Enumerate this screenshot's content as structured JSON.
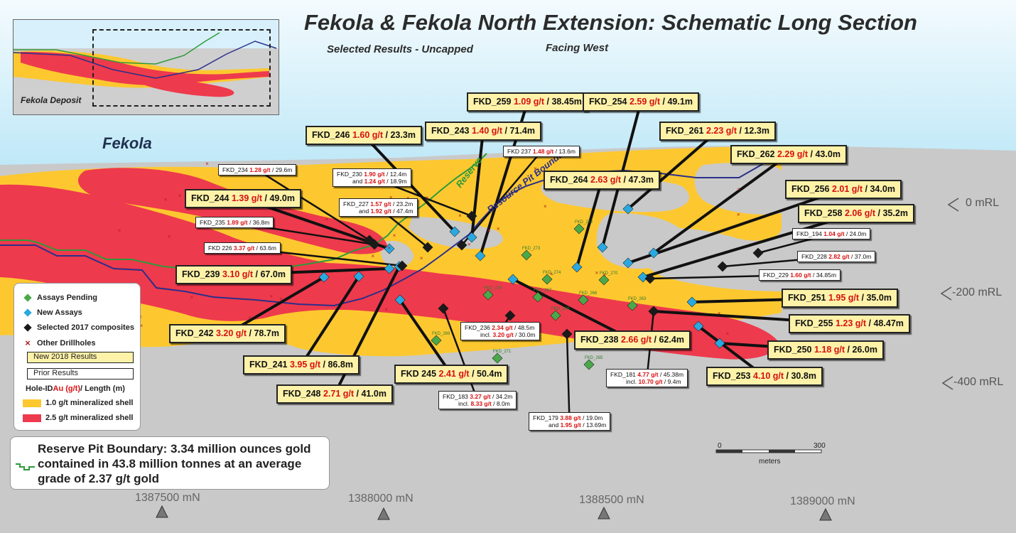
{
  "title": "Fekola & Fekola North Extension: Schematic Long Section",
  "subtitle_left": "Selected Results - Uncapped",
  "subtitle_right": "Facing West",
  "deposit_label": "Fekola",
  "inset_label": "Fekola Deposit",
  "section_labels": {
    "reserve": "Reserve",
    "resource_pit": "Resource Pit Boundary"
  },
  "colors": {
    "sky": "#bfe8f7",
    "shell_1g": "#fdc82f",
    "shell_25g": "#ee3a4d",
    "waste": "#c9c9c9",
    "grade": "#d81010",
    "pending": "#4aa84a",
    "new_assay": "#2aa8e0",
    "composite": "#1a1a1a",
    "reserve_pit": "#2e9a3a",
    "resource_pit": "#2a2f8a"
  },
  "new_labels": [
    {
      "id": "FKD_259",
      "grade": "1.09 g/t",
      "len": "38.45m"
    },
    {
      "id": "FKD_254",
      "grade": "2.59 g/t",
      "len": "49.1m"
    },
    {
      "id": "FKD_243",
      "grade": "1.40 g/t",
      "len": "71.4m"
    },
    {
      "id": "FKD_246",
      "grade": "1.60 g/t",
      "len": "23.3m"
    },
    {
      "id": "FKD_261",
      "grade": "2.23 g/t",
      "len": "12.3m"
    },
    {
      "id": "FKD_262",
      "grade": "2.29 g/t",
      "len": "43.0m"
    },
    {
      "id": "FKD_264",
      "grade": "2.63 g/t",
      "len": "47.3m"
    },
    {
      "id": "FKD_256",
      "grade": "2.01 g/t",
      "len": "34.0m"
    },
    {
      "id": "FKD_258",
      "grade": "2.06 g/t",
      "len": "35.2m"
    },
    {
      "id": "FKD_244",
      "grade": "1.39 g/t",
      "len": "49.0m"
    },
    {
      "id": "FKD_239",
      "grade": "3.10 g/t",
      "len": "67.0m"
    },
    {
      "id": "FKD_251",
      "grade": "1.95 g/t",
      "len": "35.0m"
    },
    {
      "id": "FKD_255",
      "grade": "1.23 g/t",
      "len": "48.47m"
    },
    {
      "id": "FKD_242",
      "grade": "3.20 g/t",
      "len": "78.7m"
    },
    {
      "id": "FKD_238",
      "grade": "2.66 g/t",
      "len": "62.4m"
    },
    {
      "id": "FKD_250",
      "grade": "1.18 g/t",
      "len": "26.0m"
    },
    {
      "id": "FKD_241",
      "grade": "3.95 g/t",
      "len": "86.8m"
    },
    {
      "id": "FKD 245",
      "grade": "2.41 g/t",
      "len": "50.4m"
    },
    {
      "id": "FKD_253",
      "grade": "4.10 g/t",
      "len": "30.8m"
    },
    {
      "id": "FKD_248",
      "grade": "2.71 g/t",
      "len": "41.0m"
    }
  ],
  "prior_labels": [
    {
      "id": "FKD 237",
      "grade": "1.48 g/t",
      "len": "13.6m"
    },
    {
      "id": "FKD_234",
      "grade": "1.28 g/t",
      "len": "29.6m"
    },
    {
      "id": "FKD_230",
      "grade": "1.90 g/t",
      "len": "12.4m",
      "pre2": "and",
      "grade2": "1.24 g/t",
      "len2": "18.9m"
    },
    {
      "id": "FKD_227",
      "grade": "1.57 g/t",
      "len": "23.2m",
      "pre2": "and",
      "grade2": "1.92 g/t",
      "len2": "47.4m"
    },
    {
      "id": "FKD_235",
      "grade": "1.89 g/t",
      "len": "36.8m"
    },
    {
      "id": "FKD 226",
      "grade": "3.37 g/t",
      "len": "63.6m"
    },
    {
      "id": "FKD_194",
      "grade": "1.04 g/t",
      "len": "24.0m"
    },
    {
      "id": "FKD_228",
      "grade": "2.82 g/t",
      "len": "37.0m"
    },
    {
      "id": "FKD_229",
      "grade": "1.60 g/t",
      "len": "34.85m"
    },
    {
      "id": "FKD_236",
      "grade": "2.34 g/t",
      "len": "48.5m",
      "pre2": "incl.",
      "grade2": "3.20 g/t",
      "len2": "30.0m"
    },
    {
      "id": "FKD_181",
      "grade": "4.77 g/t",
      "len": "45.38m",
      "pre2": "incl.",
      "grade2": "10.70 g/t",
      "len2": "9.4m"
    },
    {
      "id": "FKD_183",
      "grade": "3.27 g/t",
      "len": "34.2m",
      "pre2": "incl.",
      "grade2": "8.33 g/t",
      "len2": "8.0m"
    },
    {
      "id": "FKD_179",
      "grade": "3.88 g/t",
      "len": "19.0m",
      "pre2": "and",
      "grade2": "1.95 g/t",
      "len2": "13.69m"
    }
  ],
  "pending_ids": [
    "FKD_272",
    "FKD_273",
    "FKD_274",
    "FKD_270",
    "FKD_266",
    "FKD_263",
    "FKD_276",
    "FKD_267",
    "FKD_268",
    "FKD_269",
    "FKD_271",
    "FKD_265"
  ],
  "legend": {
    "pending": "Assays Pending",
    "new_assays": "New Assays",
    "composites": "Selected 2017 composites",
    "other": "Other Drillholes",
    "new_results": "New 2018 Results",
    "prior_results": "Prior Results",
    "hole_prefix": "Hole-ID ",
    "hole_grade": "Au (g/t)",
    "hole_suffix": " / Length (m)",
    "shell_1": "1.0 g/t mineralized shell",
    "shell_25": "2.5 g/t mineralized shell"
  },
  "reserve_text": "Reserve Pit Boundary: 3.34 million ounces gold contained in 43.8 million tonnes at an average grade of 2.37 g/t gold",
  "rl_labels": [
    "0 mRL",
    "-200 mRL",
    "-400 mRL"
  ],
  "mn_labels": [
    "1387500 mN",
    "1388000 mN",
    "1388500 mN",
    "1389000 mN"
  ],
  "scale": {
    "min": "0",
    "max": "300",
    "unit": "meters"
  }
}
